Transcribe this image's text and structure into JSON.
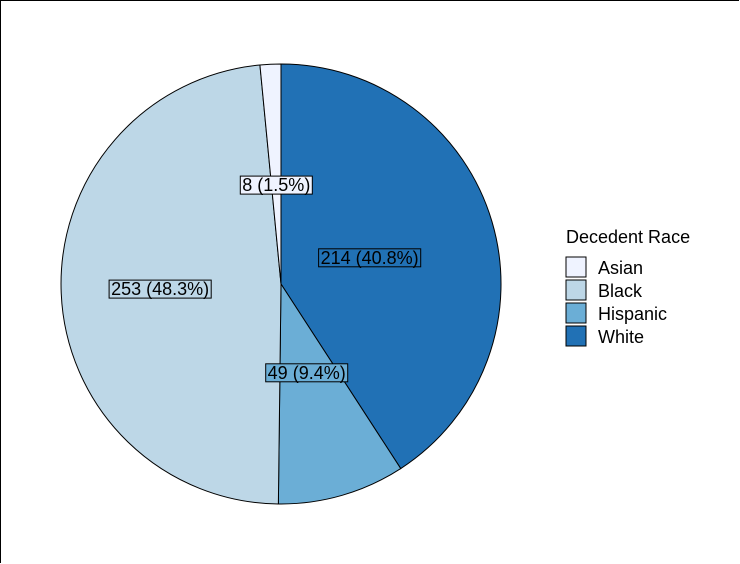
{
  "chart_data": {
    "type": "pie",
    "legend_title": "Decedent Race",
    "legend_position": "right",
    "slices": [
      {
        "name": "Asian",
        "value": 8,
        "percent": 1.5,
        "label": "8 (1.5%)",
        "color": "#eff3ff"
      },
      {
        "name": "Black",
        "value": 253,
        "percent": 48.3,
        "label": "253 (48.3%)",
        "color": "#bdd7e7"
      },
      {
        "name": "Hispanic",
        "value": 49,
        "percent": 9.4,
        "label": "49 (9.4%)",
        "color": "#6baed6"
      },
      {
        "name": "White",
        "value": 214,
        "percent": 40.8,
        "label": "214 (40.8%)",
        "color": "#2171b5"
      }
    ]
  }
}
